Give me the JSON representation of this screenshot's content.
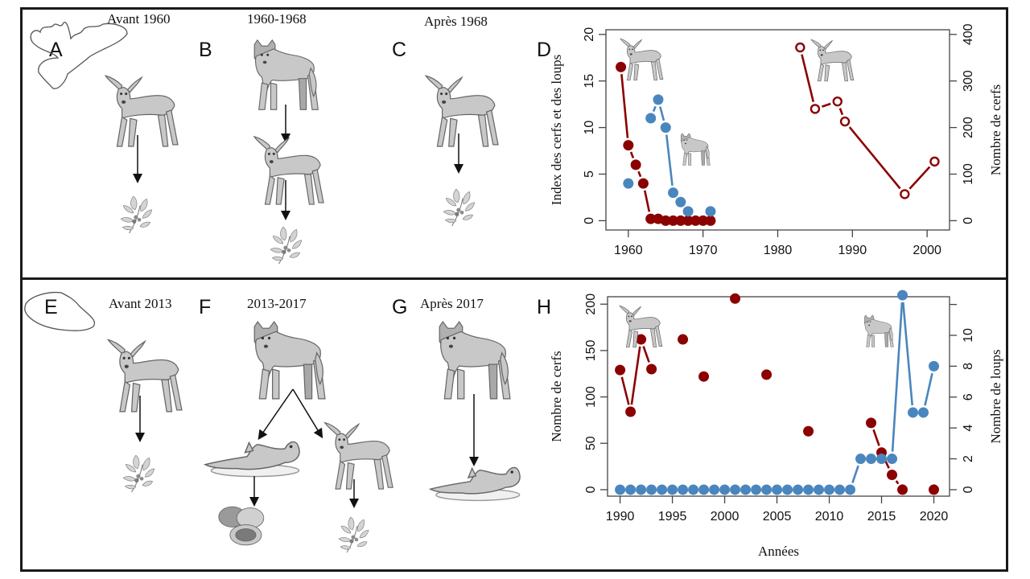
{
  "figure": {
    "panels_top": [
      {
        "letter": "A",
        "period": "Avant 1960",
        "food_chain": [
          "deer",
          "plant"
        ]
      },
      {
        "letter": "B",
        "period": "1960-1968",
        "food_chain": [
          "wolf",
          "deer",
          "plant"
        ]
      },
      {
        "letter": "C",
        "period": "Après 1968",
        "food_chain": [
          "deer",
          "plant"
        ]
      },
      {
        "letter": "D"
      }
    ],
    "panels_bottom": [
      {
        "letter": "E",
        "period": "Avant 2013",
        "food_chain": [
          "deer",
          "plant"
        ]
      },
      {
        "letter": "F",
        "period": "2013-2017",
        "food_chain": [
          "wolf",
          "otter",
          "deer",
          "clams",
          "plant"
        ]
      },
      {
        "letter": "G",
        "period": "Après 2017",
        "food_chain": [
          "wolf",
          "otter"
        ]
      },
      {
        "letter": "H"
      }
    ],
    "icons": [
      "island-map-icon",
      "deer-icon",
      "wolf-icon",
      "plant-icon",
      "otter-icon",
      "clam-icon",
      "arrow-down-icon"
    ]
  },
  "colors": {
    "deer": "#8b0000",
    "wolf": "#4a86be",
    "frame": "#1a1a1a",
    "illustration": "#c8c8c8"
  },
  "chart_data": [
    {
      "id": "D",
      "type": "scatter",
      "title": "",
      "xlabel": "",
      "ylabel": "Index des cerfs et des loups",
      "ylabel_right": "Nombre de cerfs",
      "xlim": [
        1957,
        2003
      ],
      "ylim": [
        -1,
        20.5
      ],
      "ylim_right": [
        -20,
        410
      ],
      "xticks": [
        1960,
        1970,
        1980,
        1990,
        2000
      ],
      "yticks": [
        0,
        5,
        10,
        15,
        20
      ],
      "yticks_right": [
        0,
        100,
        200,
        300,
        400
      ],
      "series": [
        {
          "name": "Index des cerfs",
          "axis": "left",
          "marker": "filled",
          "color": "#8b0000",
          "x": [
            1959,
            1960,
            1961,
            1962,
            1963,
            1964,
            1965,
            1966,
            1967,
            1968,
            1969,
            1970,
            1971
          ],
          "y": [
            16.5,
            8.1,
            6,
            4,
            0.2,
            0.2,
            0,
            0,
            0,
            0,
            0,
            0,
            0
          ]
        },
        {
          "name": "Index des loups",
          "axis": "left",
          "marker": "filled",
          "color": "#4a86be",
          "x": [
            1960,
            1963,
            1964,
            1965,
            1966,
            1967,
            1968,
            1971
          ],
          "y": [
            4,
            11,
            13,
            10,
            3,
            2,
            1,
            1
          ]
        },
        {
          "name": "Nombre de cerfs",
          "axis": "right",
          "marker": "open",
          "color": "#8b0000",
          "x": [
            1983,
            1985,
            1988,
            1989,
            1997,
            2001
          ],
          "y": [
            372,
            240,
            256,
            213,
            57,
            127
          ]
        }
      ]
    },
    {
      "id": "H",
      "type": "scatter",
      "title": "",
      "xlabel": "Années",
      "ylabel": "Nombre de cerfs",
      "ylabel_right": "Nombre de loups",
      "xlim": [
        1988.8,
        2021.5
      ],
      "ylim": [
        -7,
        208
      ],
      "ylim_right": [
        -0.42,
        12.5
      ],
      "xticks": [
        1990,
        1995,
        2000,
        2005,
        2010,
        2015,
        2020
      ],
      "yticks": [
        0,
        50,
        100,
        150,
        200
      ],
      "yticks_right": [
        0,
        2,
        4,
        6,
        8,
        10,
        12
      ],
      "yticklabels_right": [
        "0",
        "2",
        "4",
        "6",
        "8",
        "10",
        ""
      ],
      "series": [
        {
          "name": "Nombre de cerfs",
          "axis": "left",
          "marker": "filled",
          "color": "#8b0000",
          "x": [
            1990,
            1991,
            1992,
            1993,
            1996,
            1998,
            2001,
            2004,
            2008,
            2014,
            2015,
            2016,
            2017,
            2020
          ],
          "y": [
            129,
            84,
            162,
            130,
            162,
            122,
            206,
            124,
            63,
            72,
            40,
            16,
            0,
            0
          ]
        },
        {
          "name": "Nombre de loups",
          "axis": "right",
          "marker": "filled",
          "color": "#4a86be",
          "x": [
            1990,
            1991,
            1992,
            1993,
            1994,
            1995,
            1996,
            1997,
            1998,
            1999,
            2000,
            2001,
            2002,
            2003,
            2004,
            2005,
            2006,
            2007,
            2008,
            2009,
            2010,
            2011,
            2012,
            2013,
            2014,
            2015,
            2016,
            2017,
            2018,
            2019,
            2020
          ],
          "y": [
            0,
            0,
            0,
            0,
            0,
            0,
            0,
            0,
            0,
            0,
            0,
            0,
            0,
            0,
            0,
            0,
            0,
            0,
            0,
            0,
            0,
            0,
            0,
            2,
            2,
            2,
            2,
            12.6,
            5,
            5,
            8
          ]
        }
      ]
    }
  ]
}
